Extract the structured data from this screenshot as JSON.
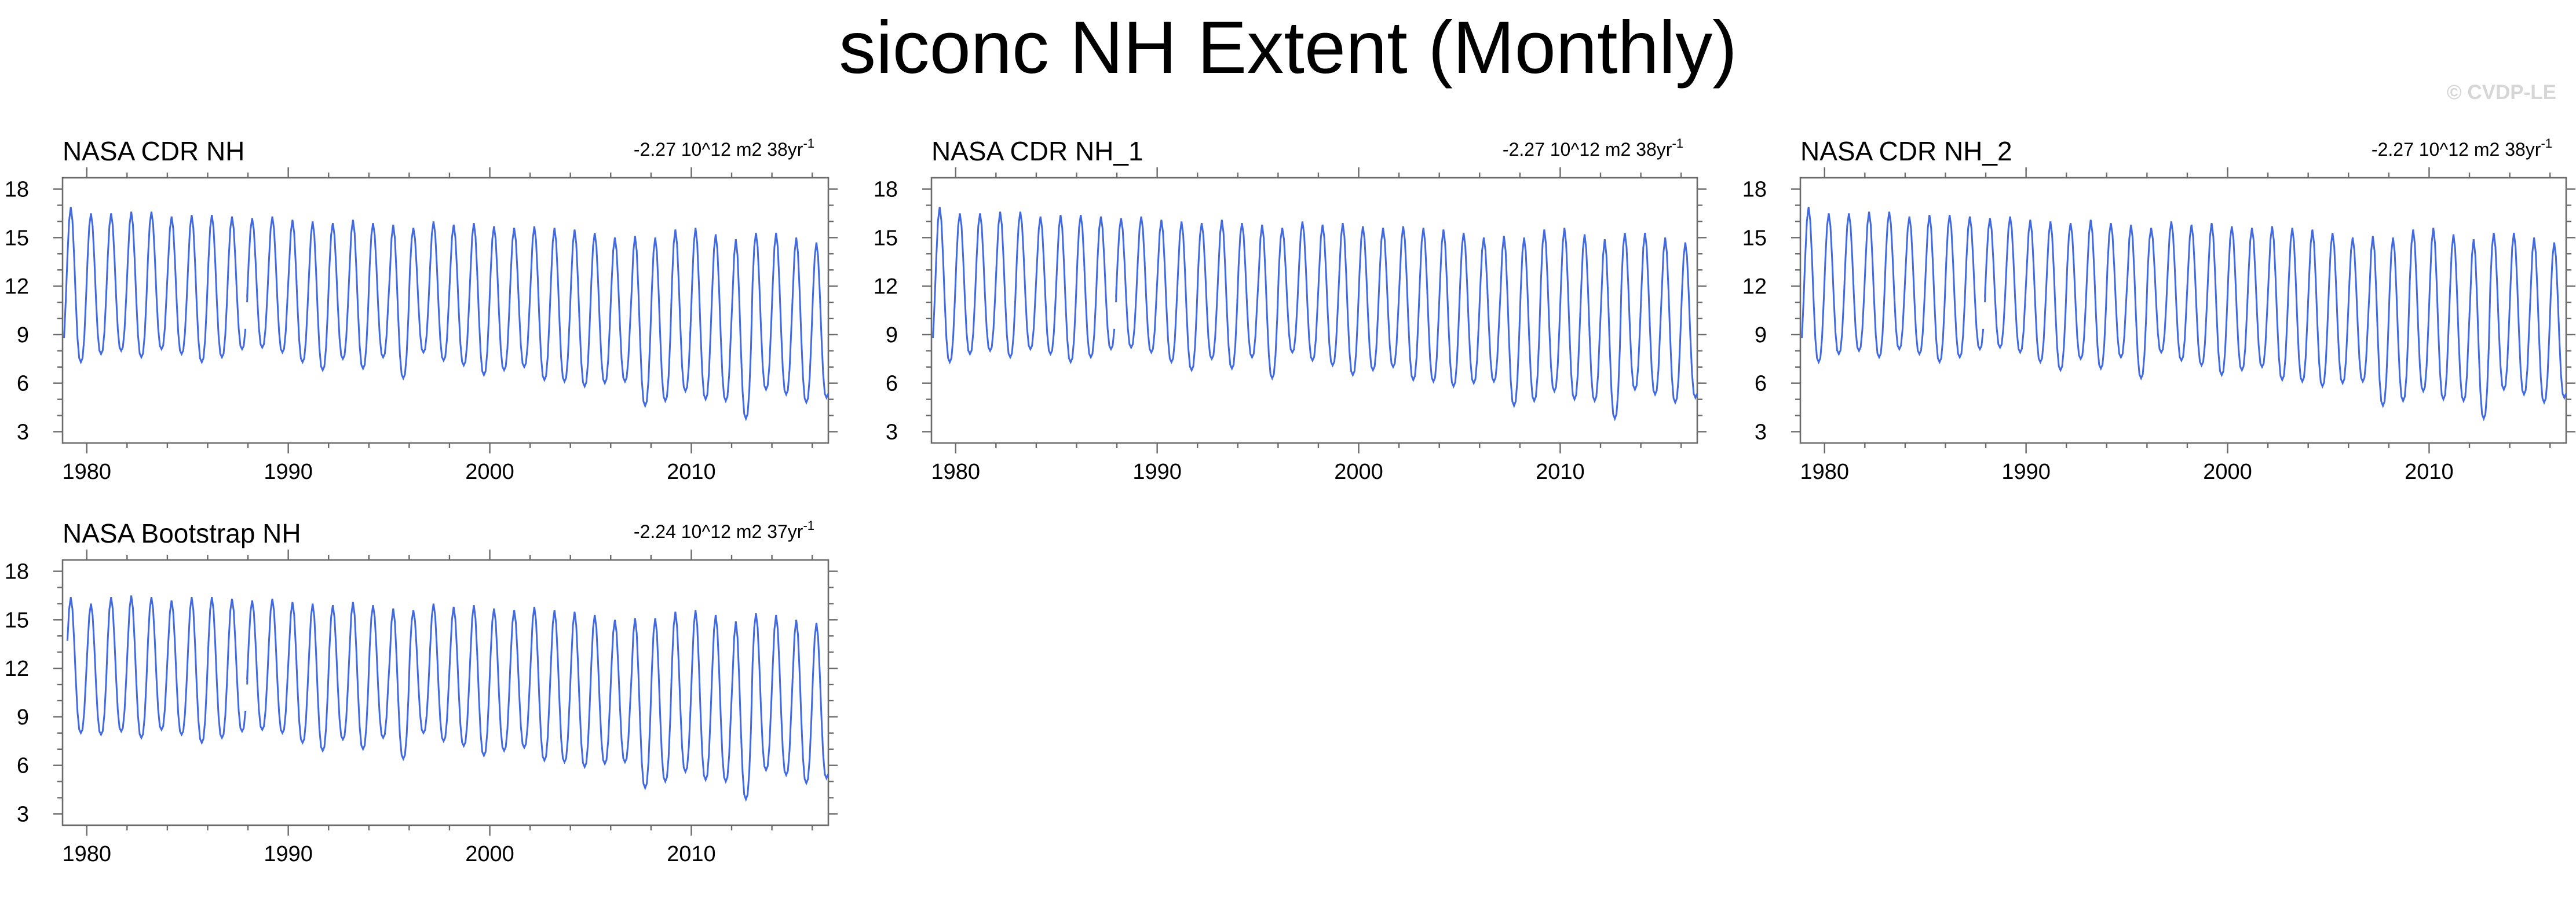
{
  "title": "siconc NH Extent (Monthly)",
  "watermark": "© CVDP-LE",
  "chart_data": [
    {
      "type": "line",
      "title": "NASA CDR NH",
      "trend": {
        "value": "-2.27 10^12 m2 38yr",
        "superscript": "-1"
      },
      "xlabel": "",
      "ylabel": "",
      "xlim": [
        1978.8,
        2016.8
      ],
      "ylim": [
        2.3,
        18.7
      ],
      "x_ticks": [
        1980,
        1990,
        2000,
        2010
      ],
      "y_ticks": [
        3,
        6,
        9,
        12,
        15,
        18
      ],
      "grid": false,
      "series_color": "#4169e1",
      "series": [
        {
          "start_year": 1978,
          "start_month": 11,
          "end_year": 2016,
          "end_month": 12,
          "annual_max": [
            16.9,
            16.5,
            16.5,
            16.6,
            16.6,
            16.3,
            16.4,
            16.4,
            16.3,
            16.2,
            16.3,
            16.1,
            16.0,
            15.9,
            16.1,
            15.9,
            15.8,
            15.6,
            16.0,
            15.8,
            15.9,
            15.7,
            15.6,
            15.7,
            15.6,
            15.5,
            15.3,
            15.0,
            15.1,
            15.0,
            15.5,
            15.6,
            15.2,
            14.9,
            15.3,
            15.3,
            15.0,
            14.7,
            14.7
          ],
          "annual_min": [
            7.3,
            7.8,
            8.0,
            7.6,
            8.1,
            7.8,
            7.3,
            7.6,
            8.1,
            8.2,
            7.9,
            7.3,
            6.8,
            7.5,
            6.9,
            7.6,
            6.3,
            7.9,
            7.4,
            7.1,
            6.5,
            6.8,
            7.0,
            6.2,
            6.1,
            5.8,
            6.0,
            6.1,
            4.6,
            4.9,
            5.5,
            5.0,
            4.9,
            3.8,
            5.6,
            5.3,
            4.8,
            5.1,
            5.0
          ],
          "gap_after": [
            1987,
            11
          ],
          "gap_points": [
            {
              "x": 1987.96,
              "y": 12.0
            }
          ]
        }
      ]
    },
    {
      "type": "line",
      "title": "NASA CDR NH_1",
      "trend": {
        "value": "-2.27 10^12 m2 38yr",
        "superscript": "-1"
      },
      "xlabel": "",
      "ylabel": "",
      "xlim": [
        1978.8,
        2016.8
      ],
      "ylim": [
        2.3,
        18.7
      ],
      "x_ticks": [
        1980,
        1990,
        2000,
        2010
      ],
      "y_ticks": [
        3,
        6,
        9,
        12,
        15,
        18
      ],
      "grid": false,
      "series_color": "#4169e1",
      "series": [
        {
          "start_year": 1978,
          "start_month": 11,
          "end_year": 2016,
          "end_month": 12,
          "annual_max": [
            16.9,
            16.5,
            16.5,
            16.6,
            16.6,
            16.3,
            16.4,
            16.4,
            16.3,
            16.2,
            16.3,
            16.1,
            16.0,
            15.9,
            16.1,
            15.9,
            15.8,
            15.6,
            16.0,
            15.8,
            15.9,
            15.7,
            15.6,
            15.7,
            15.6,
            15.5,
            15.3,
            15.0,
            15.1,
            15.0,
            15.5,
            15.6,
            15.2,
            14.9,
            15.3,
            15.3,
            15.0,
            14.7,
            14.7
          ],
          "annual_min": [
            7.3,
            7.8,
            8.0,
            7.6,
            8.1,
            7.8,
            7.3,
            7.6,
            8.1,
            8.2,
            7.9,
            7.3,
            6.8,
            7.5,
            6.9,
            7.6,
            6.3,
            7.9,
            7.4,
            7.1,
            6.5,
            6.8,
            7.0,
            6.2,
            6.1,
            5.8,
            6.0,
            6.1,
            4.6,
            4.9,
            5.5,
            5.0,
            4.9,
            3.8,
            5.6,
            5.3,
            4.8,
            5.1,
            5.0
          ],
          "gap_after": [
            1987,
            11
          ],
          "gap_points": [
            {
              "x": 1987.96,
              "y": 12.0
            }
          ]
        }
      ]
    },
    {
      "type": "line",
      "title": "NASA CDR NH_2",
      "trend": {
        "value": "-2.27 10^12 m2 38yr",
        "superscript": "-1"
      },
      "xlabel": "",
      "ylabel": "",
      "xlim": [
        1978.8,
        2016.8
      ],
      "ylim": [
        2.3,
        18.7
      ],
      "x_ticks": [
        1980,
        1990,
        2000,
        2010
      ],
      "y_ticks": [
        3,
        6,
        9,
        12,
        15,
        18
      ],
      "grid": false,
      "series_color": "#4169e1",
      "series": [
        {
          "start_year": 1978,
          "start_month": 11,
          "end_year": 2016,
          "end_month": 12,
          "annual_max": [
            16.9,
            16.5,
            16.5,
            16.6,
            16.6,
            16.3,
            16.4,
            16.4,
            16.3,
            16.2,
            16.3,
            16.1,
            16.0,
            15.9,
            16.1,
            15.9,
            15.8,
            15.6,
            16.0,
            15.8,
            15.9,
            15.7,
            15.6,
            15.7,
            15.6,
            15.5,
            15.3,
            15.0,
            15.1,
            15.0,
            15.5,
            15.6,
            15.2,
            14.9,
            15.3,
            15.3,
            15.0,
            14.7,
            14.7
          ],
          "annual_min": [
            7.3,
            7.8,
            8.0,
            7.6,
            8.1,
            7.8,
            7.3,
            7.6,
            8.1,
            8.2,
            7.9,
            7.3,
            6.8,
            7.5,
            6.9,
            7.6,
            6.3,
            7.9,
            7.4,
            7.1,
            6.5,
            6.8,
            7.0,
            6.2,
            6.1,
            5.8,
            6.0,
            6.1,
            4.6,
            4.9,
            5.5,
            5.0,
            4.9,
            3.8,
            5.6,
            5.3,
            4.8,
            5.1,
            5.0
          ],
          "gap_after": [
            1987,
            11
          ],
          "gap_points": [
            {
              "x": 1987.96,
              "y": 12.0
            }
          ]
        }
      ]
    },
    {
      "type": "line",
      "title": "NASA Bootstrap NH",
      "trend": {
        "value": "-2.24 10^12 m2 37yr",
        "superscript": "-1"
      },
      "xlabel": "",
      "ylabel": "",
      "xlim": [
        1978.8,
        2016.8
      ],
      "ylim": [
        2.3,
        18.7
      ],
      "x_ticks": [
        1980,
        1990,
        2000,
        2010
      ],
      "y_ticks": [
        3,
        6,
        9,
        12,
        15,
        18
      ],
      "grid": false,
      "series_color": "#4169e1",
      "series": [
        {
          "start_year": 1979,
          "start_month": 1,
          "end_year": 2016,
          "end_month": 12,
          "annual_max": [
            16.4,
            16.0,
            16.4,
            16.5,
            16.4,
            16.2,
            16.4,
            16.4,
            16.3,
            16.2,
            16.3,
            16.1,
            16.0,
            15.9,
            16.1,
            15.9,
            15.7,
            15.6,
            16.0,
            15.8,
            15.9,
            15.7,
            15.6,
            15.8,
            15.6,
            15.5,
            15.3,
            15.0,
            15.1,
            15.1,
            15.5,
            15.6,
            15.3,
            14.9,
            15.4,
            15.3,
            15.0,
            14.8,
            14.7
          ],
          "annual_min": [
            8.0,
            7.9,
            8.1,
            7.7,
            8.2,
            7.9,
            7.4,
            7.7,
            8.1,
            8.2,
            8.0,
            7.4,
            6.9,
            7.6,
            7.0,
            7.7,
            6.4,
            8.0,
            7.5,
            7.2,
            6.6,
            6.9,
            7.1,
            6.3,
            6.2,
            5.9,
            6.1,
            6.2,
            4.6,
            5.0,
            5.6,
            5.1,
            5.0,
            3.9,
            5.7,
            5.4,
            4.9,
            5.2,
            5.0
          ],
          "gap_after": [
            1987,
            11
          ],
          "gap_points": [
            {
              "x": 1987.96,
              "y": 12.0
            }
          ]
        }
      ]
    }
  ]
}
